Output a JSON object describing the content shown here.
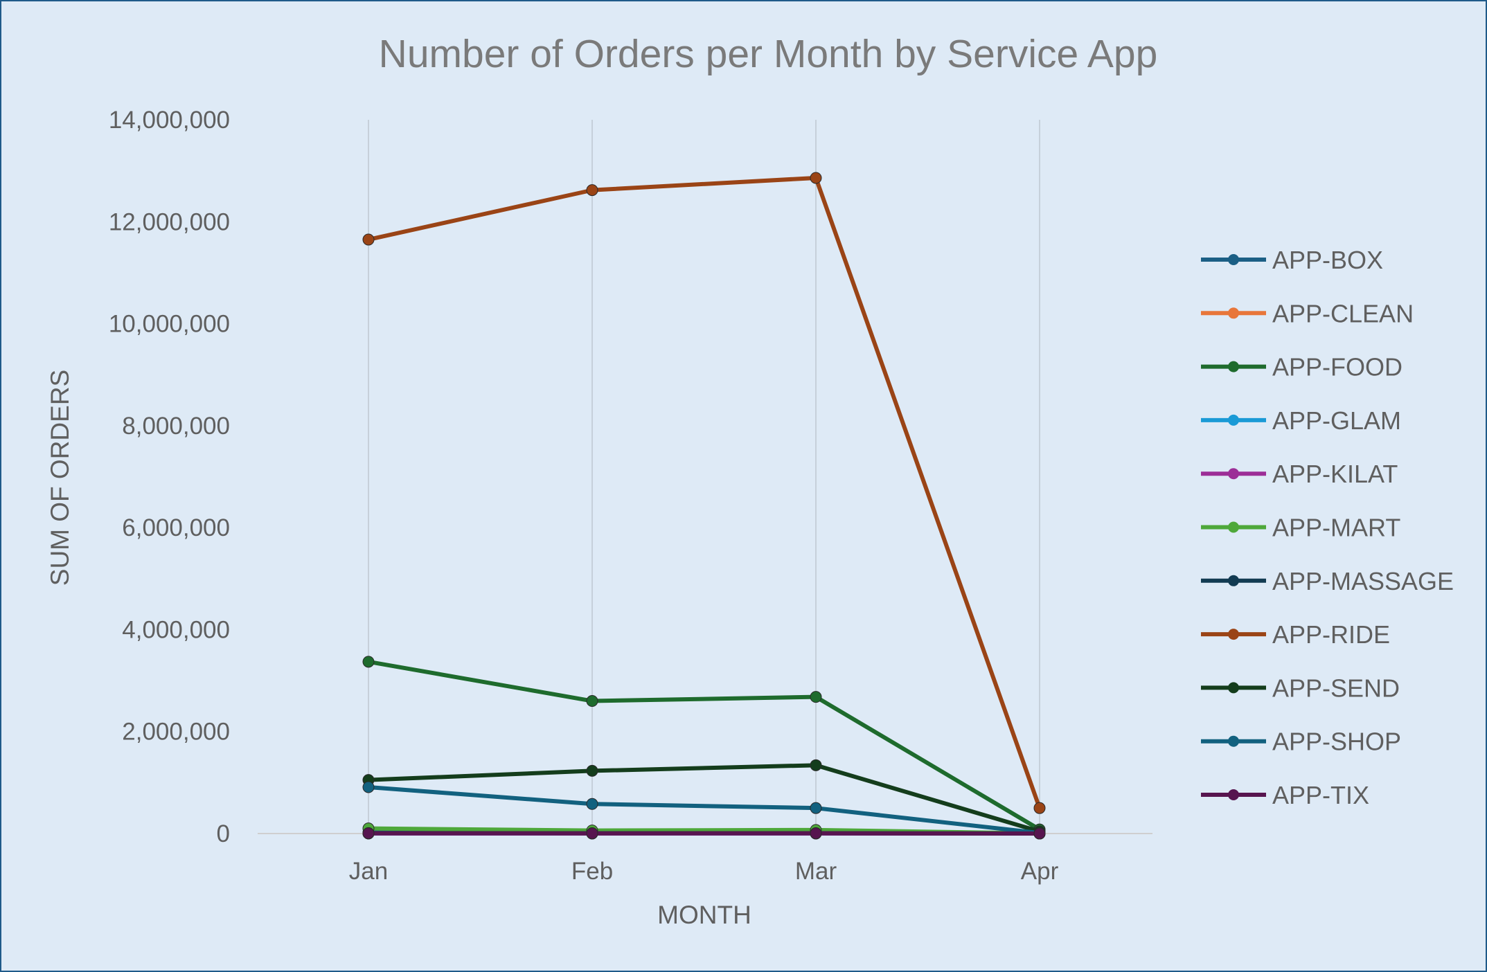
{
  "chart_data": {
    "type": "line",
    "title": "Number of Orders per Month by Service App",
    "xlabel": "MONTH",
    "ylabel": "SUM OF ORDERS",
    "categories": [
      "Jan",
      "Feb",
      "Mar",
      "Apr"
    ],
    "ylim": [
      0,
      14000000
    ],
    "y_ticks": [
      0,
      2000000,
      4000000,
      6000000,
      8000000,
      10000000,
      12000000,
      14000000
    ],
    "y_tick_labels": [
      "0",
      "2,000,000",
      "4,000,000",
      "6,000,000",
      "8,000,000",
      "10,000,000",
      "12,000,000",
      "14,000,000"
    ],
    "grid": "vertical",
    "legend_position": "right",
    "series": [
      {
        "name": "APP-BOX",
        "color": "#1b5f85",
        "values": [
          20000,
          12000,
          11000,
          1000
        ]
      },
      {
        "name": "APP-CLEAN",
        "color": "#e8763a",
        "values": [
          3000,
          2500,
          2600,
          200
        ]
      },
      {
        "name": "APP-FOOD",
        "color": "#1e6b2d",
        "values": [
          3370000,
          2600000,
          2680000,
          80000
        ]
      },
      {
        "name": "APP-GLAM",
        "color": "#1a9ad6",
        "values": [
          2000,
          1800,
          1900,
          150
        ]
      },
      {
        "name": "APP-KILAT",
        "color": "#9c2e97",
        "values": [
          1000,
          900,
          900,
          100
        ]
      },
      {
        "name": "APP-MART",
        "color": "#4ea83a",
        "values": [
          100000,
          60000,
          70000,
          3000
        ]
      },
      {
        "name": "APP-MASSAGE",
        "color": "#123b52",
        "values": [
          8000,
          7000,
          7500,
          400
        ]
      },
      {
        "name": "APP-RIDE",
        "color": "#9a4416",
        "values": [
          11650000,
          12620000,
          12860000,
          500000
        ]
      },
      {
        "name": "APP-SEND",
        "color": "#143d1c",
        "values": [
          1050000,
          1230000,
          1340000,
          40000
        ]
      },
      {
        "name": "APP-SHOP",
        "color": "#12617f",
        "values": [
          910000,
          580000,
          500000,
          10000
        ]
      },
      {
        "name": "APP-TIX",
        "color": "#57154f",
        "values": [
          5000,
          4000,
          4500,
          200
        ]
      }
    ]
  }
}
